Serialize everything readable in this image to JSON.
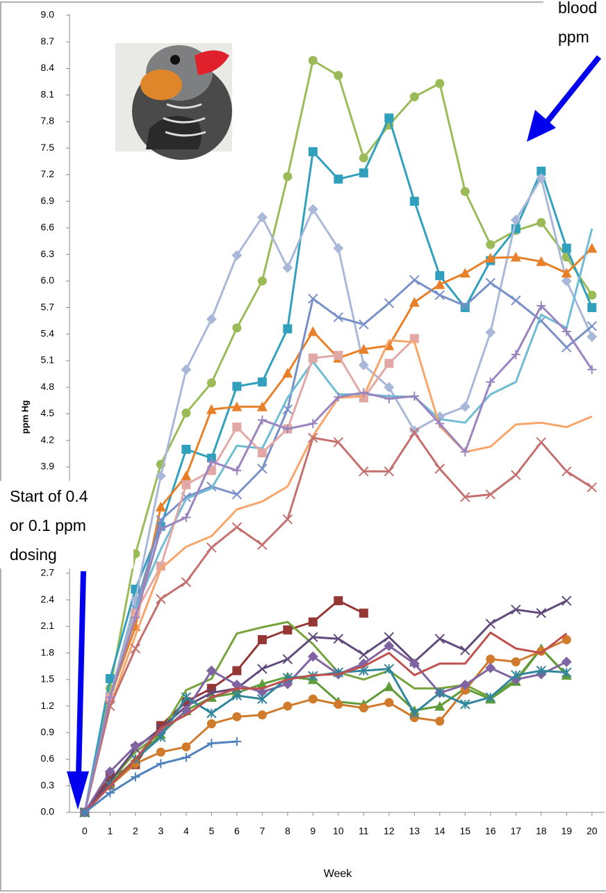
{
  "chart_data": {
    "type": "line",
    "x_label": "Week",
    "y_label": "ppm Hg",
    "x": [
      0,
      1,
      2,
      3,
      4,
      5,
      6,
      7,
      8,
      9,
      10,
      11,
      12,
      13,
      14,
      15,
      16,
      17,
      18,
      19,
      20
    ],
    "xlim": [
      -0.6,
      20.5
    ],
    "xticks": [
      0,
      1,
      2,
      3,
      4,
      5,
      6,
      7,
      8,
      9,
      10,
      11,
      12,
      13,
      14,
      15,
      16,
      17,
      18,
      19,
      20
    ],
    "ylim": [
      0,
      9
    ],
    "yticks": [
      {
        "value": 0,
        "label": "0.0"
      },
      0.3,
      0.6,
      0.9,
      1.2,
      1.5,
      1.8,
      2.1,
      2.4,
      2.7,
      3.9,
      4.2,
      4.5,
      4.8,
      5.1,
      5.4,
      5.7,
      {
        "value": 6,
        "label": "6.0"
      },
      6.3,
      6.6,
      6.9,
      7.2,
      7.5,
      7.8,
      8.1,
      8.4,
      8.7,
      {
        "value": 9,
        "label": "9.0"
      }
    ],
    "grid": false,
    "annotations": [
      [
        "Start of 0.4",
        "or 0.1 ppm",
        "dosing"
      ],
      [
        "blood",
        "ppm"
      ]
    ],
    "series": [
      {
        "color": "#9bbb59",
        "marker": "circle",
        "values": [
          0,
          1.4,
          2.92,
          3.93,
          4.51,
          4.85,
          5.47,
          6.0,
          7.18,
          8.49,
          8.32,
          7.39,
          7.76,
          8.08,
          8.23,
          7.01,
          6.41,
          6.57,
          6.66,
          6.27,
          5.84
        ]
      },
      {
        "color": "#31a0bd",
        "marker": "square",
        "values": [
          0,
          1.51,
          2.52,
          3.23,
          4.1,
          4.0,
          4.81,
          4.86,
          5.46,
          7.46,
          7.15,
          7.22,
          7.84,
          6.9,
          6.06,
          5.7,
          6.23,
          6.59,
          7.24,
          6.37,
          5.7
        ]
      },
      {
        "color": "#a9b8d8",
        "marker": "diamond",
        "values": [
          0,
          1.3,
          2.4,
          3.8,
          5.0,
          5.57,
          6.29,
          6.72,
          6.15,
          6.81,
          6.37,
          5.05,
          4.8,
          4.31,
          4.47,
          4.58,
          5.42,
          6.69,
          7.16,
          6.0,
          5.37
        ]
      },
      {
        "color": "#e8802a",
        "marker": "triangle",
        "values": [
          0,
          1.3,
          2.1,
          3.45,
          3.8,
          4.55,
          4.58,
          4.58,
          4.96,
          5.43,
          5.13,
          5.23,
          5.27,
          5.76,
          5.96,
          6.09,
          6.26,
          6.27,
          6.22,
          6.09,
          6.37
        ]
      },
      {
        "color": "#7790c8",
        "marker": "x",
        "values": [
          0,
          1.3,
          2.3,
          3.3,
          3.56,
          3.68,
          3.59,
          3.88,
          4.55,
          5.8,
          5.59,
          5.51,
          5.75,
          6.01,
          5.84,
          5.72,
          5.98,
          5.78,
          5.55,
          5.25,
          5.49
        ]
      },
      {
        "color": "#6fbcd4",
        "marker": "none",
        "values": [
          0,
          1.3,
          2.3,
          2.97,
          3.54,
          3.66,
          4.14,
          4.11,
          4.68,
          5.09,
          4.72,
          4.72,
          4.7,
          4.69,
          4.44,
          4.4,
          4.72,
          4.86,
          5.62,
          5.47,
          6.59
        ]
      },
      {
        "color": "#e2a8a6",
        "marker": "square",
        "values": [
          0,
          1.3,
          2.25,
          2.78,
          3.7,
          3.86,
          4.35,
          4.06,
          4.33,
          5.13,
          5.16,
          4.68,
          5.07,
          5.35,
          null,
          null,
          null,
          null,
          null,
          null,
          null
        ]
      },
      {
        "color": "#f7a56a",
        "marker": "none",
        "values": [
          0,
          1.2,
          2.0,
          2.75,
          3.0,
          3.12,
          3.42,
          3.51,
          3.68,
          4.25,
          4.68,
          4.7,
          5.33,
          5.31,
          4.36,
          4.07,
          4.13,
          4.38,
          4.4,
          4.35,
          4.47
        ]
      },
      {
        "color": "#c4706e",
        "marker": "x",
        "values": [
          0,
          1.2,
          1.85,
          2.41,
          2.6,
          2.99,
          3.22,
          3.02,
          3.31,
          4.23,
          4.18,
          3.85,
          3.85,
          4.29,
          3.88,
          3.56,
          3.59,
          3.81,
          4.18,
          3.85,
          3.67
        ]
      },
      {
        "color": "#9a84bf",
        "marker": "plus",
        "values": [
          0,
          1.3,
          2.2,
          3.2,
          3.33,
          3.96,
          3.86,
          4.43,
          4.33,
          4.39,
          4.69,
          4.74,
          4.67,
          4.7,
          4.39,
          4.07,
          4.86,
          5.17,
          5.72,
          5.43,
          5.0
        ]
      },
      {
        "color": "#953735",
        "marker": "square",
        "values": [
          0,
          0.4,
          0.54,
          0.98,
          1.25,
          1.4,
          1.6,
          1.95,
          2.06,
          2.15,
          2.39,
          2.25,
          null,
          null,
          null,
          null,
          null,
          null,
          null,
          null,
          null
        ]
      },
      {
        "color": "#77a33c",
        "marker": "none",
        "values": [
          0,
          0.35,
          0.68,
          0.9,
          1.38,
          1.51,
          2.02,
          2.09,
          2.15,
          1.9,
          1.58,
          1.5,
          1.6,
          1.4,
          1.4,
          1.44,
          1.3,
          1.5,
          1.85,
          1.55,
          null
        ]
      },
      {
        "color": "#5e9c3a",
        "marker": "triangle",
        "values": [
          0,
          0.33,
          0.6,
          0.88,
          1.15,
          1.3,
          1.35,
          1.45,
          1.53,
          1.5,
          1.25,
          1.22,
          1.42,
          1.15,
          1.2,
          1.4,
          1.28,
          1.48,
          1.85,
          1.55,
          null
        ]
      },
      {
        "color": "#d07a2c",
        "marker": "circle",
        "values": [
          0,
          0.3,
          0.55,
          0.68,
          0.74,
          1.0,
          1.08,
          1.1,
          1.2,
          1.28,
          1.22,
          1.18,
          1.24,
          1.07,
          1.03,
          1.38,
          1.73,
          1.7,
          1.82,
          1.95,
          null
        ]
      },
      {
        "color": "#604a7b",
        "marker": "x",
        "values": [
          0,
          0.35,
          0.72,
          0.95,
          1.2,
          1.35,
          1.4,
          1.62,
          1.73,
          1.98,
          1.96,
          1.78,
          1.98,
          1.7,
          1.96,
          1.83,
          2.13,
          2.29,
          2.25,
          2.39,
          null
        ]
      },
      {
        "color": "#8064a2",
        "marker": "diamond",
        "values": [
          0,
          0.46,
          0.75,
          0.9,
          1.15,
          1.6,
          1.44,
          1.36,
          1.45,
          1.76,
          1.56,
          1.68,
          1.88,
          1.68,
          1.35,
          1.44,
          1.63,
          1.5,
          1.56,
          1.7,
          null
        ]
      },
      {
        "color": "#31859c",
        "marker": "star",
        "values": [
          0,
          0.3,
          0.6,
          0.85,
          1.3,
          1.12,
          1.32,
          1.28,
          1.52,
          1.54,
          1.58,
          1.6,
          1.62,
          1.12,
          1.35,
          1.22,
          1.3,
          1.55,
          1.6,
          1.58,
          null
        ]
      },
      {
        "color": "#c0504d",
        "marker": "none",
        "values": [
          0,
          0.3,
          0.6,
          0.95,
          1.1,
          1.3,
          1.4,
          1.4,
          1.5,
          1.55,
          1.56,
          1.65,
          1.8,
          1.55,
          1.68,
          1.68,
          2.03,
          1.85,
          1.8,
          2.02,
          null
        ]
      },
      {
        "color": "#4f81bd",
        "marker": "plus",
        "values": [
          0,
          0.22,
          0.4,
          0.55,
          0.62,
          0.78,
          0.8,
          null,
          null,
          null,
          null,
          null,
          null,
          null,
          null,
          null,
          null,
          null,
          null,
          null,
          null
        ]
      }
    ]
  }
}
